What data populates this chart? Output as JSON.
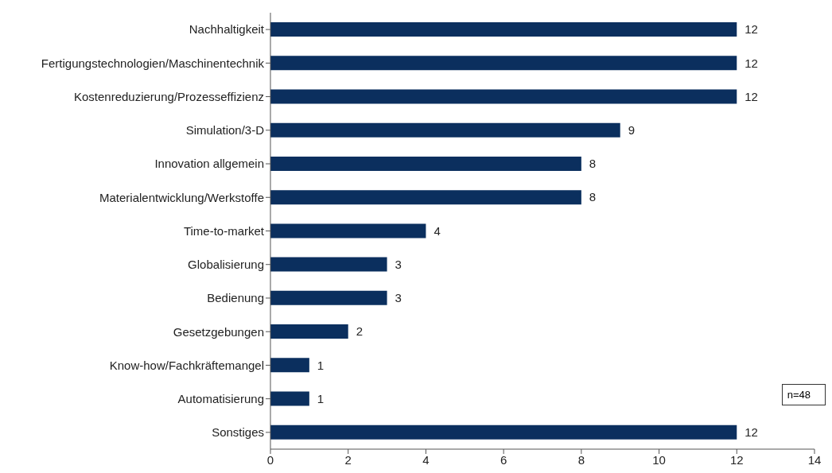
{
  "chart_data": {
    "type": "bar",
    "orientation": "horizontal",
    "categories": [
      "Nachhaltigkeit",
      "Fertigungstechnologien/Maschinentechnik",
      "Kostenreduzierung/Prozesseffizienz",
      "Simulation/3-D",
      "Innovation allgemein",
      "Materialentwicklung/Werkstoffe",
      "Time-to-market",
      "Globalisierung",
      "Bedienung",
      "Gesetzgebungen",
      "Know-how/Fachkräftemangel",
      "Automatisierung",
      "Sonstiges"
    ],
    "values": [
      12,
      12,
      12,
      9,
      8,
      8,
      4,
      3,
      3,
      2,
      1,
      1,
      12
    ],
    "color": "#0b2f5e",
    "xlim": [
      0,
      14
    ],
    "xticks": [
      0,
      2,
      4,
      6,
      8,
      10,
      12,
      14
    ],
    "grid": false,
    "data_labels": true,
    "annotations": [
      "n=48"
    ]
  }
}
